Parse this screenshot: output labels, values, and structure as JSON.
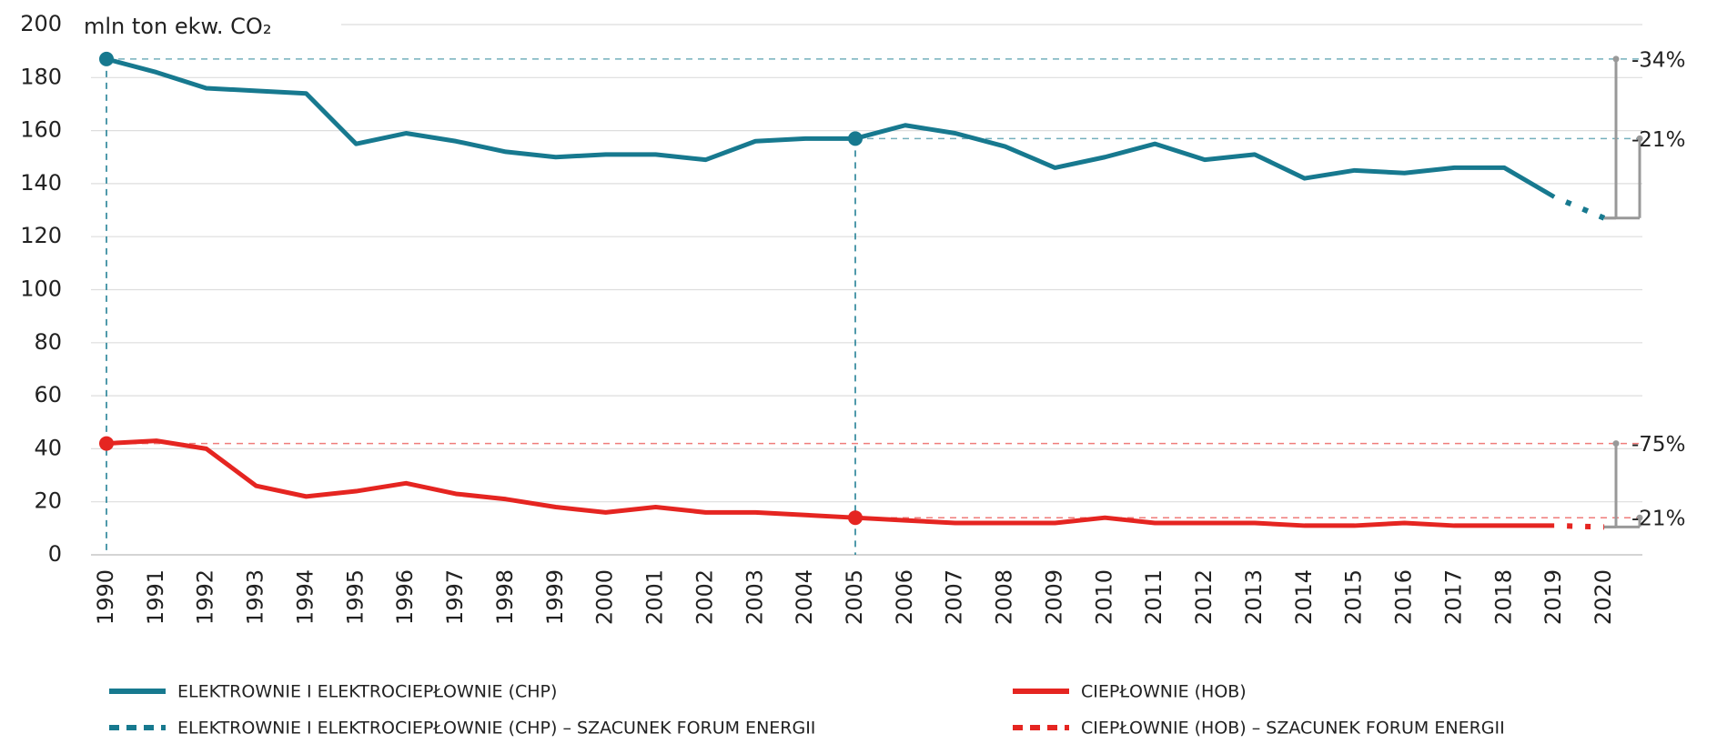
{
  "chart_data": {
    "type": "line",
    "y_axis_label": "mln ton ekw. CO₂",
    "categories": [
      "1990",
      "1991",
      "1992",
      "1993",
      "1994",
      "1995",
      "1996",
      "1997",
      "1998",
      "1999",
      "2000",
      "2001",
      "2002",
      "2003",
      "2004",
      "2005",
      "2006",
      "2007",
      "2008",
      "2009",
      "2010",
      "2011",
      "2012",
      "2013",
      "2014",
      "2015",
      "2016",
      "2017",
      "2018",
      "2019",
      "2020"
    ],
    "series": [
      {
        "name": "ELEKTROWNIE I ELEKTROCIEPŁOWNIE (CHP)",
        "color": "#17798f",
        "dash": false,
        "values": [
          187,
          182,
          176,
          175,
          174,
          155,
          159,
          156,
          152,
          150,
          151,
          151,
          149,
          156,
          157,
          157,
          162,
          159,
          154,
          146,
          150,
          155,
          149,
          151,
          142,
          145,
          144,
          146,
          146,
          135,
          null
        ]
      },
      {
        "name": "CIEPŁOWNIE (HOB)",
        "color": "#e52521",
        "dash": false,
        "values": [
          42,
          43,
          40,
          26,
          22,
          24,
          27,
          23,
          21,
          18,
          16,
          18,
          16,
          16,
          15,
          14,
          13,
          12,
          12,
          12,
          14,
          12,
          12,
          12,
          11,
          11,
          12,
          11,
          11,
          11,
          null
        ]
      },
      {
        "name": "ELEKTROWNIE I ELEKTROCIEPŁOWNIE (CHP) – SZACUNEK FORUM ENERGII",
        "color": "#17798f",
        "dash": true,
        "values": [
          null,
          null,
          null,
          null,
          null,
          null,
          null,
          null,
          null,
          null,
          null,
          null,
          null,
          null,
          null,
          null,
          null,
          null,
          null,
          null,
          null,
          null,
          null,
          null,
          null,
          null,
          null,
          null,
          null,
          135,
          127
        ]
      },
      {
        "name": "CIEPŁOWNIE (HOB) – SZACUNEK FORUM ENERGII",
        "color": "#e52521",
        "dash": true,
        "values": [
          null,
          null,
          null,
          null,
          null,
          null,
          null,
          null,
          null,
          null,
          null,
          null,
          null,
          null,
          null,
          null,
          null,
          null,
          null,
          null,
          null,
          null,
          null,
          null,
          null,
          null,
          null,
          null,
          null,
          11,
          10.5
        ]
      }
    ],
    "annotations": [
      "-34%",
      "-21%",
      "-75%",
      "-21%"
    ],
    "ylim": [
      0,
      200
    ],
    "yticks": [
      0,
      20,
      40,
      60,
      80,
      100,
      120,
      140,
      160,
      180,
      200
    ],
    "grid": true
  }
}
